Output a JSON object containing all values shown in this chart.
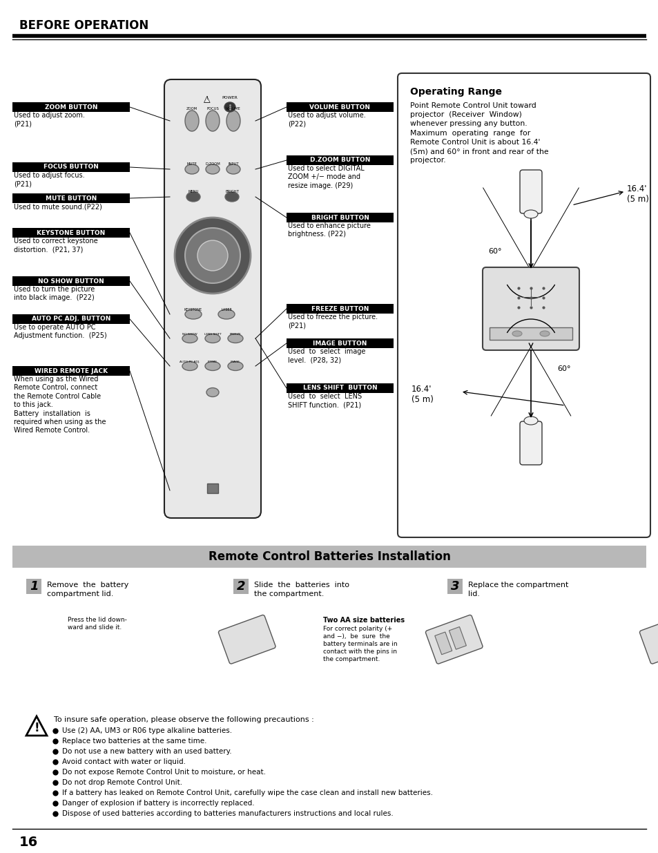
{
  "page_title": "BEFORE OPERATION",
  "page_number": "16",
  "bg_color": "#ffffff",
  "label_bg": "#000000",
  "label_fg": "#ffffff",
  "section_bg": "#b8b8b8",
  "operating_range_title": "Operating Range",
  "operating_range_text": "Point Remote Control Unit toward\nprojector  (Receiver  Window)\nwhenever pressing any button.\nMaximum  operating  range  for\nRemote Control Unit is about 16.4'\n(5m) and 60° in front and rear of the\nprojector.",
  "batteries_section_title": "Remote Control Batteries Installation",
  "step1_num": "1",
  "step1_text": "Remove  the  battery\ncompartment lid.",
  "step1_note": "Press the lid down-\nward and slide it.",
  "step2_num": "2",
  "step2_text": "Slide  the  batteries  into\nthe compartment.",
  "step2_note_title": "Two AA size batteries",
  "step2_note": "For correct polarity (+\nand −),  be  sure  the\nbattery terminals are in\ncontact with the pins in\nthe compartment.",
  "step3_num": "3",
  "step3_text": "Replace the compartment\nlid.",
  "precautions_title": "To insure safe operation, please observe the following precautions :",
  "precautions": [
    "Use (2) AA, UM3 or R06 type alkaline batteries.",
    "Replace two batteries at the same time.",
    "Do not use a new battery with an used battery.",
    "Avoid contact with water or liquid.",
    "Do not expose Remote Control Unit to moisture, or heat.",
    "Do not drop Remote Control Unit.",
    "If a battery has leaked on Remote Control Unit, carefully wipe the case clean and install new batteries.",
    "Danger of explosion if battery is incorrectly replaced.",
    "Dispose of used batteries according to batteries manufacturers instructions and local rules."
  ],
  "distance_label1": "16.4'\n(5 m)",
  "distance_label2": "16.4'\n(5 m)",
  "angle_label1": "60°",
  "angle_label2": "60°",
  "left_labels": [
    "ZOOM BUTTON",
    "FOCUS BUTTON",
    "MUTE BUTTON",
    "KEYSTONE BUTTON",
    "NO SHOW BUTTON",
    "AUTO PC ADJ. BUTTON",
    "WIRED REMOTE JACK"
  ],
  "left_descs": [
    "Used to adjust zoom.\n(P21)",
    "Used to adjust focus.\n(P21)",
    "Used to mute sound.(P22)",
    "Used to correct keystone\ndistortion.  (P21, 37)",
    "Used to turn the picture\ninto black image.  (P22)",
    "Use to operate AUTO PC\nAdjustment function.  (P25)",
    "When using as the Wired\nRemote Control, connect\nthe Remote Control Cable\nto this jack.\nBattery  installation  is\nrequired when using as the\nWired Remote Control."
  ],
  "right_labels": [
    "VOLUME BUTTON",
    "D.ZOOM BUTTON",
    "BRIGHT BUTTON",
    "FREEZE BUTTON",
    "IMAGE BUTTON",
    "LENS SHIFT  BUTTON"
  ],
  "right_descs": [
    "Used to adjust volume.\n(P22)",
    "Used to select DIGITAL\nZOOM +/− mode and\nresize image. (P29)",
    "Used to enhance picture\nbrightness. (P22)",
    "Used to freeze the picture.\n(P21)",
    "Used  to  select  image\nlevel.  (P28, 32)",
    "Used  to  select  LENS\nSHIFT function.  (P21)"
  ]
}
